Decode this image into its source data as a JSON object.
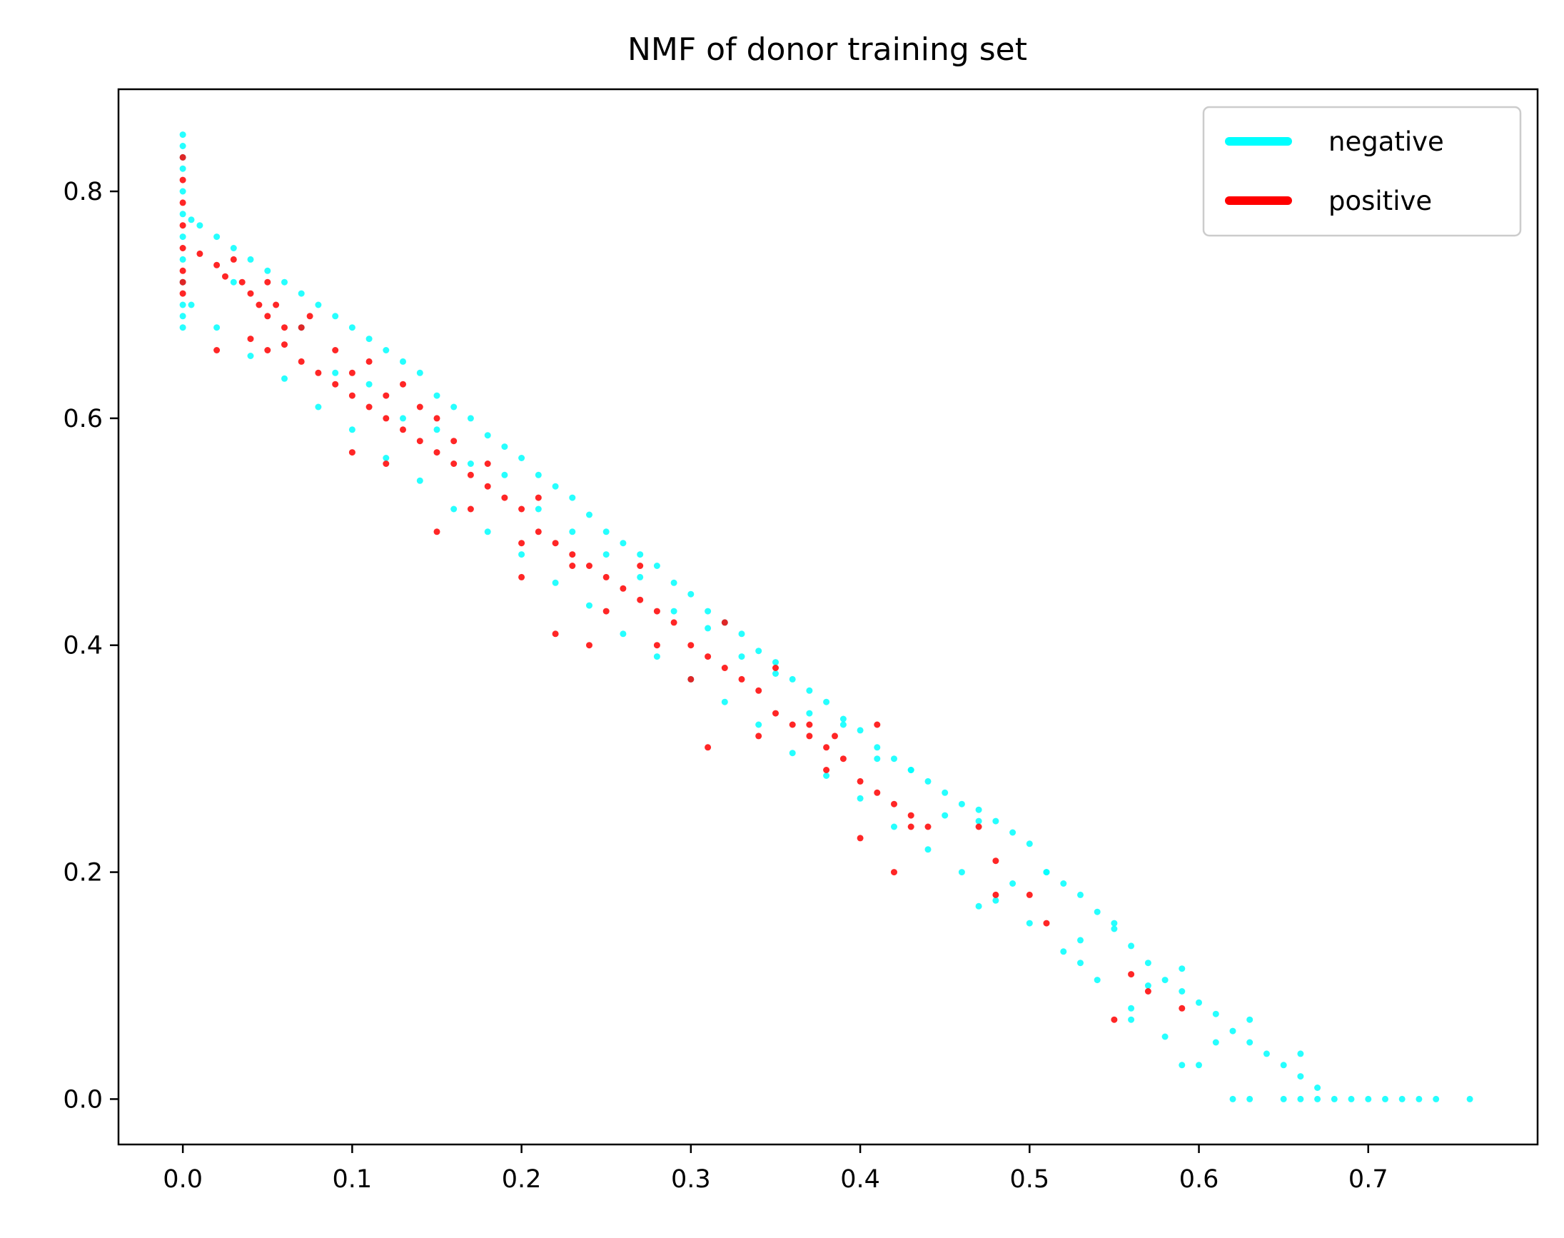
{
  "chart_data": {
    "type": "scatter",
    "title": "NMF of donor training set",
    "xlabel": "",
    "ylabel": "",
    "xlim": [
      -0.038,
      0.8
    ],
    "ylim": [
      -0.04,
      0.89
    ],
    "x_ticks": [
      0.0,
      0.1,
      0.2,
      0.3,
      0.4,
      0.5,
      0.6,
      0.7
    ],
    "x_tick_labels": [
      "0.0",
      "0.1",
      "0.2",
      "0.3",
      "0.4",
      "0.5",
      "0.6",
      "0.7"
    ],
    "y_ticks": [
      0.0,
      0.2,
      0.4,
      0.6,
      0.8
    ],
    "y_tick_labels": [
      "0.0",
      "0.2",
      "0.4",
      "0.6",
      "0.8"
    ],
    "grid": false,
    "legend_position": "top-right",
    "series": [
      {
        "name": "negative",
        "color": "#00ffff",
        "points": [
          [
            0.0,
            0.85
          ],
          [
            0.0,
            0.84
          ],
          [
            0.0,
            0.83
          ],
          [
            0.0,
            0.82
          ],
          [
            0.0,
            0.8
          ],
          [
            0.0,
            0.78
          ],
          [
            0.0,
            0.76
          ],
          [
            0.0,
            0.74
          ],
          [
            0.0,
            0.72
          ],
          [
            0.0,
            0.7
          ],
          [
            0.0,
            0.69
          ],
          [
            0.0,
            0.68
          ],
          [
            0.005,
            0.775
          ],
          [
            0.01,
            0.77
          ],
          [
            0.02,
            0.76
          ],
          [
            0.03,
            0.75
          ],
          [
            0.04,
            0.74
          ],
          [
            0.05,
            0.73
          ],
          [
            0.06,
            0.72
          ],
          [
            0.07,
            0.71
          ],
          [
            0.08,
            0.7
          ],
          [
            0.09,
            0.69
          ],
          [
            0.1,
            0.68
          ],
          [
            0.11,
            0.67
          ],
          [
            0.12,
            0.66
          ],
          [
            0.13,
            0.65
          ],
          [
            0.14,
            0.64
          ],
          [
            0.15,
            0.62
          ],
          [
            0.16,
            0.61
          ],
          [
            0.17,
            0.6
          ],
          [
            0.18,
            0.585
          ],
          [
            0.19,
            0.575
          ],
          [
            0.2,
            0.565
          ],
          [
            0.21,
            0.55
          ],
          [
            0.22,
            0.54
          ],
          [
            0.23,
            0.53
          ],
          [
            0.24,
            0.515
          ],
          [
            0.25,
            0.5
          ],
          [
            0.26,
            0.49
          ],
          [
            0.27,
            0.48
          ],
          [
            0.28,
            0.47
          ],
          [
            0.29,
            0.455
          ],
          [
            0.3,
            0.445
          ],
          [
            0.31,
            0.43
          ],
          [
            0.32,
            0.42
          ],
          [
            0.33,
            0.41
          ],
          [
            0.34,
            0.395
          ],
          [
            0.35,
            0.385
          ],
          [
            0.36,
            0.37
          ],
          [
            0.37,
            0.36
          ],
          [
            0.38,
            0.35
          ],
          [
            0.39,
            0.335
          ],
          [
            0.4,
            0.325
          ],
          [
            0.41,
            0.31
          ],
          [
            0.42,
            0.3
          ],
          [
            0.43,
            0.29
          ],
          [
            0.44,
            0.28
          ],
          [
            0.45,
            0.27
          ],
          [
            0.46,
            0.26
          ],
          [
            0.47,
            0.255
          ],
          [
            0.48,
            0.245
          ],
          [
            0.49,
            0.235
          ],
          [
            0.5,
            0.225
          ],
          [
            0.51,
            0.2
          ],
          [
            0.52,
            0.19
          ],
          [
            0.53,
            0.18
          ],
          [
            0.54,
            0.165
          ],
          [
            0.55,
            0.15
          ],
          [
            0.56,
            0.135
          ],
          [
            0.57,
            0.12
          ],
          [
            0.58,
            0.105
          ],
          [
            0.59,
            0.095
          ],
          [
            0.6,
            0.085
          ],
          [
            0.61,
            0.075
          ],
          [
            0.62,
            0.06
          ],
          [
            0.63,
            0.05
          ],
          [
            0.64,
            0.04
          ],
          [
            0.65,
            0.03
          ],
          [
            0.66,
            0.02
          ],
          [
            0.67,
            0.01
          ],
          [
            0.005,
            0.7
          ],
          [
            0.02,
            0.68
          ],
          [
            0.04,
            0.655
          ],
          [
            0.06,
            0.635
          ],
          [
            0.08,
            0.61
          ],
          [
            0.1,
            0.59
          ],
          [
            0.12,
            0.565
          ],
          [
            0.14,
            0.545
          ],
          [
            0.16,
            0.52
          ],
          [
            0.18,
            0.5
          ],
          [
            0.2,
            0.48
          ],
          [
            0.22,
            0.455
          ],
          [
            0.24,
            0.435
          ],
          [
            0.26,
            0.41
          ],
          [
            0.28,
            0.39
          ],
          [
            0.3,
            0.37
          ],
          [
            0.32,
            0.35
          ],
          [
            0.34,
            0.33
          ],
          [
            0.36,
            0.305
          ],
          [
            0.38,
            0.285
          ],
          [
            0.4,
            0.265
          ],
          [
            0.42,
            0.24
          ],
          [
            0.44,
            0.22
          ],
          [
            0.46,
            0.2
          ],
          [
            0.48,
            0.175
          ],
          [
            0.5,
            0.155
          ],
          [
            0.52,
            0.13
          ],
          [
            0.54,
            0.105
          ],
          [
            0.56,
            0.08
          ],
          [
            0.58,
            0.055
          ],
          [
            0.6,
            0.03
          ],
          [
            0.03,
            0.72
          ],
          [
            0.07,
            0.68
          ],
          [
            0.11,
            0.63
          ],
          [
            0.15,
            0.59
          ],
          [
            0.19,
            0.55
          ],
          [
            0.23,
            0.5
          ],
          [
            0.27,
            0.46
          ],
          [
            0.31,
            0.415
          ],
          [
            0.35,
            0.375
          ],
          [
            0.39,
            0.33
          ],
          [
            0.43,
            0.29
          ],
          [
            0.47,
            0.245
          ],
          [
            0.51,
            0.2
          ],
          [
            0.55,
            0.155
          ],
          [
            0.59,
            0.115
          ],
          [
            0.63,
            0.07
          ],
          [
            0.25,
            0.48
          ],
          [
            0.33,
            0.39
          ],
          [
            0.41,
            0.3
          ],
          [
            0.45,
            0.25
          ],
          [
            0.49,
            0.19
          ],
          [
            0.53,
            0.14
          ],
          [
            0.57,
            0.1
          ],
          [
            0.61,
            0.05
          ],
          [
            0.17,
            0.56
          ],
          [
            0.09,
            0.64
          ],
          [
            0.13,
            0.6
          ],
          [
            0.21,
            0.52
          ],
          [
            0.29,
            0.43
          ],
          [
            0.37,
            0.34
          ],
          [
            0.62,
            0.0
          ],
          [
            0.63,
            0.0
          ],
          [
            0.65,
            0.0
          ],
          [
            0.66,
            0.0
          ],
          [
            0.67,
            0.0
          ],
          [
            0.68,
            0.0
          ],
          [
            0.69,
            0.0
          ],
          [
            0.7,
            0.0
          ],
          [
            0.71,
            0.0
          ],
          [
            0.72,
            0.0
          ],
          [
            0.73,
            0.0
          ],
          [
            0.74,
            0.0
          ],
          [
            0.76,
            0.0
          ],
          [
            0.66,
            0.04
          ],
          [
            0.56,
            0.07
          ],
          [
            0.59,
            0.03
          ],
          [
            0.47,
            0.17
          ],
          [
            0.53,
            0.12
          ]
        ]
      },
      {
        "name": "positive",
        "color": "#ff0000",
        "points": [
          [
            0.0,
            0.83
          ],
          [
            0.0,
            0.81
          ],
          [
            0.0,
            0.79
          ],
          [
            0.0,
            0.77
          ],
          [
            0.0,
            0.75
          ],
          [
            0.0,
            0.73
          ],
          [
            0.0,
            0.72
          ],
          [
            0.0,
            0.71
          ],
          [
            0.01,
            0.745
          ],
          [
            0.02,
            0.735
          ],
          [
            0.025,
            0.725
          ],
          [
            0.03,
            0.74
          ],
          [
            0.035,
            0.72
          ],
          [
            0.04,
            0.71
          ],
          [
            0.045,
            0.7
          ],
          [
            0.05,
            0.69
          ],
          [
            0.055,
            0.7
          ],
          [
            0.06,
            0.68
          ],
          [
            0.04,
            0.67
          ],
          [
            0.05,
            0.66
          ],
          [
            0.06,
            0.665
          ],
          [
            0.07,
            0.65
          ],
          [
            0.08,
            0.64
          ],
          [
            0.09,
            0.63
          ],
          [
            0.1,
            0.64
          ],
          [
            0.1,
            0.62
          ],
          [
            0.11,
            0.61
          ],
          [
            0.12,
            0.6
          ],
          [
            0.12,
            0.62
          ],
          [
            0.13,
            0.59
          ],
          [
            0.14,
            0.58
          ],
          [
            0.15,
            0.57
          ],
          [
            0.16,
            0.56
          ],
          [
            0.17,
            0.55
          ],
          [
            0.18,
            0.54
          ],
          [
            0.19,
            0.53
          ],
          [
            0.2,
            0.52
          ],
          [
            0.21,
            0.5
          ],
          [
            0.22,
            0.49
          ],
          [
            0.23,
            0.48
          ],
          [
            0.24,
            0.47
          ],
          [
            0.25,
            0.46
          ],
          [
            0.26,
            0.45
          ],
          [
            0.27,
            0.44
          ],
          [
            0.28,
            0.43
          ],
          [
            0.29,
            0.42
          ],
          [
            0.3,
            0.4
          ],
          [
            0.31,
            0.39
          ],
          [
            0.32,
            0.38
          ],
          [
            0.33,
            0.37
          ],
          [
            0.34,
            0.36
          ],
          [
            0.35,
            0.34
          ],
          [
            0.36,
            0.33
          ],
          [
            0.37,
            0.32
          ],
          [
            0.38,
            0.31
          ],
          [
            0.39,
            0.3
          ],
          [
            0.4,
            0.28
          ],
          [
            0.41,
            0.27
          ],
          [
            0.42,
            0.26
          ],
          [
            0.43,
            0.25
          ],
          [
            0.44,
            0.24
          ],
          [
            0.21,
            0.53
          ],
          [
            0.22,
            0.41
          ],
          [
            0.24,
            0.4
          ],
          [
            0.2,
            0.46
          ],
          [
            0.17,
            0.52
          ],
          [
            0.15,
            0.6
          ],
          [
            0.13,
            0.63
          ],
          [
            0.09,
            0.66
          ],
          [
            0.07,
            0.68
          ],
          [
            0.05,
            0.72
          ],
          [
            0.075,
            0.69
          ],
          [
            0.11,
            0.65
          ],
          [
            0.14,
            0.61
          ],
          [
            0.16,
            0.58
          ],
          [
            0.18,
            0.56
          ],
          [
            0.2,
            0.49
          ],
          [
            0.23,
            0.47
          ],
          [
            0.25,
            0.43
          ],
          [
            0.27,
            0.47
          ],
          [
            0.28,
            0.4
          ],
          [
            0.3,
            0.37
          ],
          [
            0.31,
            0.31
          ],
          [
            0.32,
            0.42
          ],
          [
            0.34,
            0.32
          ],
          [
            0.35,
            0.38
          ],
          [
            0.37,
            0.33
          ],
          [
            0.38,
            0.29
          ],
          [
            0.4,
            0.23
          ],
          [
            0.42,
            0.2
          ],
          [
            0.43,
            0.24
          ],
          [
            0.48,
            0.21
          ],
          [
            0.47,
            0.24
          ],
          [
            0.48,
            0.18
          ],
          [
            0.5,
            0.18
          ],
          [
            0.51,
            0.155
          ],
          [
            0.56,
            0.11
          ],
          [
            0.57,
            0.095
          ],
          [
            0.59,
            0.08
          ],
          [
            0.55,
            0.07
          ],
          [
            0.385,
            0.32
          ],
          [
            0.41,
            0.33
          ],
          [
            0.02,
            0.66
          ],
          [
            0.1,
            0.57
          ],
          [
            0.12,
            0.56
          ],
          [
            0.15,
            0.5
          ]
        ]
      }
    ]
  }
}
